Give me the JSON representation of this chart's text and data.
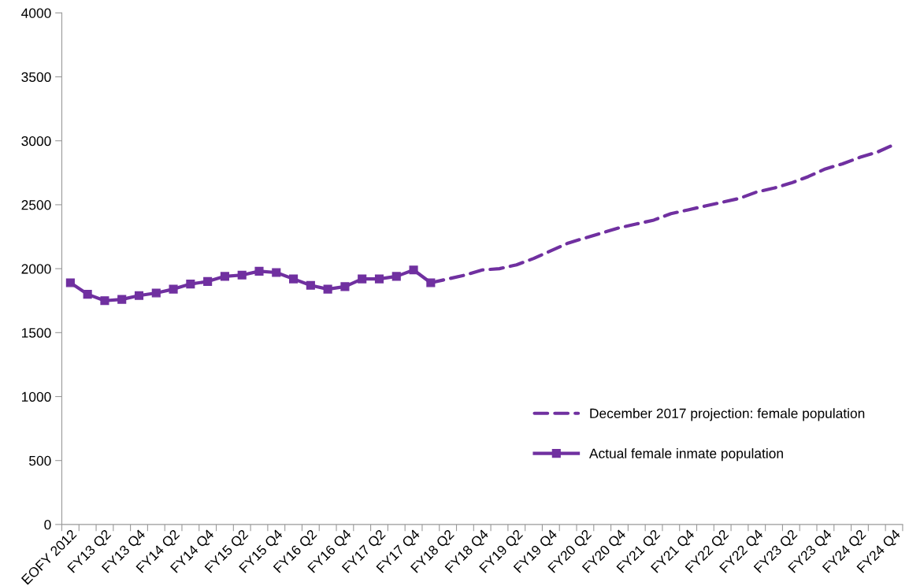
{
  "chart_data": {
    "type": "line",
    "categories": [
      "EOFY 2012",
      null,
      "FY13 Q2",
      null,
      "FY13 Q4",
      null,
      "FY14 Q2",
      null,
      "FY14 Q4",
      null,
      "FY15 Q2",
      null,
      "FY15 Q4",
      null,
      "FY16 Q2",
      null,
      "FY16 Q4",
      null,
      "FY17 Q2",
      null,
      "FY17 Q4",
      null,
      "FY18 Q2",
      null,
      "FY18 Q4",
      null,
      "FY19 Q2",
      null,
      "FY19 Q4",
      null,
      "FY20 Q2",
      null,
      "FY20 Q4",
      null,
      "FY21 Q2",
      null,
      "FY21 Q4",
      null,
      "FY22 Q2",
      null,
      "FY22 Q4",
      null,
      "FY23 Q2",
      null,
      "FY23 Q4",
      null,
      "FY24 Q2",
      null,
      "FY24 Q4"
    ],
    "series": [
      {
        "name": "December 2017 projection: female population",
        "color": "#7030a0",
        "line_style": "dashed",
        "marker": "none",
        "values": [
          null,
          null,
          null,
          null,
          null,
          null,
          null,
          null,
          null,
          null,
          null,
          null,
          null,
          null,
          null,
          null,
          null,
          null,
          null,
          null,
          null,
          1890,
          1920,
          1950,
          1990,
          2000,
          2030,
          2080,
          2140,
          2200,
          2240,
          2280,
          2320,
          2350,
          2380,
          2430,
          2460,
          2490,
          2520,
          2550,
          2600,
          2630,
          2670,
          2720,
          2780,
          2820,
          2870,
          2910,
          2970
        ]
      },
      {
        "name": "Actual female inmate population",
        "color": "#7030a0",
        "line_style": "solid",
        "marker": "square",
        "values": [
          1890,
          1800,
          1750,
          1760,
          1790,
          1810,
          1840,
          1880,
          1900,
          1940,
          1950,
          1980,
          1970,
          1920,
          1870,
          1840,
          1860,
          1920,
          1920,
          1940,
          1990,
          1890,
          null,
          null,
          null,
          null,
          null,
          null,
          null,
          null,
          null,
          null,
          null,
          null,
          null,
          null,
          null,
          null,
          null,
          null,
          null,
          null,
          null,
          null,
          null,
          null,
          null,
          null,
          null
        ]
      }
    ],
    "ylim": [
      0,
      4000
    ],
    "yticks": [
      0,
      500,
      1000,
      1500,
      2000,
      2500,
      3000,
      3500,
      4000
    ],
    "grid": false,
    "legend": "bottom right"
  }
}
